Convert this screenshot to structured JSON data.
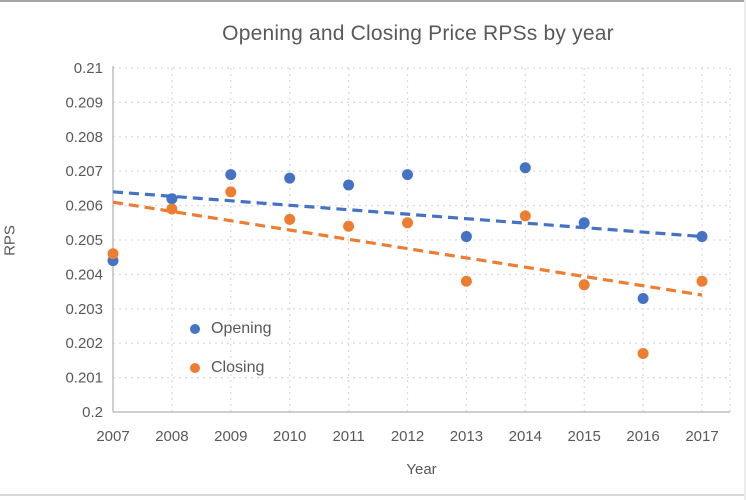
{
  "chart_data": {
    "type": "scatter",
    "title": "Opening and Closing Price RPSs by year",
    "xlabel": "Year",
    "ylabel": "RPS",
    "x": [
      2007,
      2008,
      2009,
      2010,
      2011,
      2012,
      2013,
      2014,
      2015,
      2016,
      2017
    ],
    "series": [
      {
        "name": "Opening",
        "color": "#4472C4",
        "values": [
          0.2044,
          0.2062,
          0.2069,
          0.2068,
          0.2066,
          0.2069,
          0.2051,
          0.2071,
          0.2055,
          0.2033,
          0.2051
        ],
        "trendline": {
          "style": "dashed",
          "start": 0.2064,
          "end": 0.2051
        }
      },
      {
        "name": "Closing",
        "color": "#ED7D31",
        "values": [
          0.2046,
          0.2059,
          0.2064,
          0.2056,
          0.2054,
          0.2055,
          0.2038,
          0.2057,
          0.2037,
          0.2017,
          0.2038
        ],
        "trendline": {
          "style": "dashed",
          "start": 0.2061,
          "end": 0.2034
        }
      }
    ],
    "xlim": [
      2007,
      2017
    ],
    "ylim": [
      0.2,
      0.21
    ],
    "grid": true,
    "legend_position": "inside-bottom-left",
    "xtick_labels": [
      "2007",
      "2008",
      "2009",
      "2010",
      "2011",
      "2012",
      "2013",
      "2014",
      "2015",
      "2016",
      "2017"
    ],
    "ytick_values": [
      0.21,
      0.209,
      0.208,
      0.207,
      0.206,
      0.205,
      0.204,
      0.203,
      0.202,
      0.201,
      0.2
    ],
    "ytick_labels": [
      "0.21",
      "0.209",
      "0.208",
      "0.207",
      "0.206",
      "0.205",
      "0.204",
      "0.203",
      "0.202",
      "0.201",
      "0.2"
    ],
    "colors": {
      "grid": "#D9D9D9",
      "axis": "#BFBFBF",
      "text": "#595959"
    }
  }
}
